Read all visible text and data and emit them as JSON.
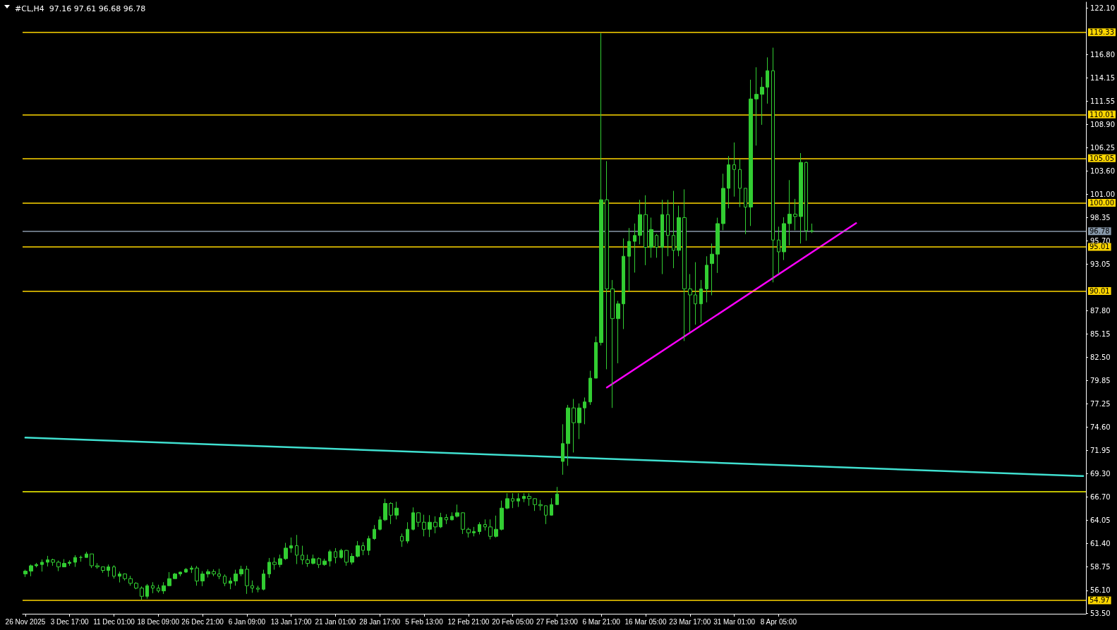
{
  "chart_data": {
    "type": "candlestick",
    "title": "#CL,H4  97.16 97.61 96.68 96.78",
    "color": "#32cd32",
    "categories": [
      "26 Nov 2025",
      null,
      null,
      null,
      null,
      null,
      null,
      null,
      "3 Dec 17:00",
      null,
      null,
      null,
      null,
      null,
      null,
      null,
      "11 Dec 01:00",
      null,
      null,
      null,
      null,
      null,
      null,
      null,
      "18 Dec 09:00",
      null,
      null,
      null,
      null,
      null,
      null,
      null,
      "26 Dec 21:00",
      null,
      null,
      null,
      null,
      null,
      null,
      null,
      "6 Jan 09:00",
      null,
      null,
      null,
      null,
      null,
      null,
      null,
      "13 Jan 17:00",
      null,
      null,
      null,
      null,
      null,
      null,
      null,
      "21 Jan 01:00",
      null,
      null,
      null,
      null,
      null,
      null,
      null,
      "28 Jan 17:00",
      null,
      null,
      null,
      null,
      null,
      null,
      null,
      "5 Feb 13:00",
      null,
      null,
      null,
      null,
      null,
      null,
      null,
      "12 Feb 21:00",
      null,
      null,
      null,
      null,
      null,
      null,
      null,
      "20 Feb 05:00",
      null,
      null,
      null,
      null,
      null,
      null,
      null,
      "27 Feb 13:00",
      null,
      null,
      null,
      null,
      null,
      null,
      null,
      "6 Mar 21:00",
      null,
      null,
      null,
      null,
      null,
      null,
      null,
      "16 Mar 05:00",
      null,
      null,
      null,
      null,
      null,
      null,
      null,
      "23 Mar 17:00",
      null,
      null,
      null,
      null,
      null,
      null,
      null,
      "31 Mar 01:00",
      null,
      null,
      null,
      null,
      null,
      null,
      null,
      "8 Apr 05:00",
      null,
      null,
      null,
      null,
      null,
      null,
      null,
      null,
      null,
      null,
      null,
      null,
      null,
      null,
      null,
      null,
      null,
      null,
      null,
      null,
      null,
      null,
      null,
      null,
      null,
      null,
      null,
      null,
      null,
      null,
      null,
      null,
      null,
      null,
      null,
      null,
      null,
      null,
      null,
      null,
      null,
      null,
      null,
      null,
      null,
      null,
      null,
      null,
      null,
      null,
      null,
      null,
      null,
      null,
      null
    ],
    "ohlc": [
      [
        57.96,
        58.44,
        57.62,
        58.28
      ],
      [
        58.28,
        59.03,
        57.7,
        58.89
      ],
      [
        58.89,
        59.21,
        58.71,
        59.03
      ],
      [
        59.03,
        59.61,
        58.23,
        59.29
      ],
      [
        59.29,
        60.01,
        58.81,
        59.56
      ],
      [
        59.56,
        59.69,
        58.89,
        59.29
      ],
      [
        59.29,
        59.48,
        58.28,
        58.76
      ],
      [
        58.76,
        59.64,
        58.76,
        59.16
      ],
      [
        59.16,
        59.51,
        58.89,
        59.29
      ],
      [
        59.29,
        60.09,
        58.76,
        59.83
      ],
      [
        59.83,
        60.04,
        59.35,
        59.83
      ],
      [
        59.83,
        60.47,
        59.83,
        60.23
      ],
      [
        60.23,
        60.23,
        58.63,
        58.89
      ],
      [
        58.89,
        59.19,
        58.55,
        58.76
      ],
      [
        58.76,
        58.81,
        58.09,
        58.36
      ],
      [
        58.36,
        59.03,
        57.64,
        58.76
      ],
      [
        58.76,
        58.95,
        57.43,
        57.7
      ],
      [
        57.7,
        58.23,
        57.0,
        57.96
      ],
      [
        57.96,
        58.02,
        57.22,
        57.43
      ],
      [
        57.43,
        57.75,
        56.63,
        56.9
      ],
      [
        56.9,
        57.03,
        56.23,
        56.36
      ],
      [
        56.36,
        56.55,
        55.03,
        55.43
      ],
      [
        55.43,
        56.82,
        55.16,
        56.63
      ],
      [
        56.63,
        57.03,
        55.78,
        56.36
      ],
      [
        56.36,
        56.74,
        55.83,
        56.04
      ],
      [
        56.04,
        57.03,
        55.7,
        56.63
      ],
      [
        56.63,
        58.17,
        56.63,
        57.43
      ],
      [
        57.43,
        58.07,
        57.43,
        57.96
      ],
      [
        57.96,
        58.23,
        57.7,
        58.17
      ],
      [
        58.17,
        58.63,
        58.09,
        58.49
      ],
      [
        58.49,
        58.89,
        58.07,
        58.63
      ],
      [
        58.63,
        58.87,
        56.63,
        57.16
      ],
      [
        57.16,
        58.28,
        56.58,
        57.96
      ],
      [
        57.96,
        58.49,
        57.56,
        58.23
      ],
      [
        58.23,
        58.49,
        57.7,
        57.96
      ],
      [
        57.96,
        58.55,
        57.37,
        57.7
      ],
      [
        57.7,
        57.91,
        56.58,
        56.9
      ],
      [
        56.9,
        57.56,
        56.23,
        57.16
      ],
      [
        57.16,
        58.44,
        56.63,
        57.96
      ],
      [
        57.96,
        58.89,
        57.7,
        58.49
      ],
      [
        58.49,
        58.89,
        55.7,
        56.63
      ],
      [
        56.63,
        57.22,
        55.83,
        56.36
      ],
      [
        56.36,
        56.63,
        55.88,
        56.23
      ],
      [
        56.23,
        58.44,
        56.1,
        57.96
      ],
      [
        57.96,
        59.77,
        57.51,
        59.29
      ],
      [
        59.29,
        59.83,
        58.44,
        59.03
      ],
      [
        59.03,
        60.15,
        58.71,
        59.69
      ],
      [
        59.69,
        61.48,
        59.56,
        60.89
      ],
      [
        60.89,
        62.09,
        60.36,
        61.16
      ],
      [
        61.16,
        62.38,
        59.08,
        60.09
      ],
      [
        60.09,
        61.16,
        59.03,
        59.56
      ],
      [
        59.56,
        60.15,
        58.76,
        59.16
      ],
      [
        59.16,
        60.15,
        59.03,
        59.69
      ],
      [
        59.69,
        59.83,
        58.63,
        59.03
      ],
      [
        59.03,
        59.69,
        58.89,
        59.43
      ],
      [
        59.43,
        60.71,
        58.81,
        60.49
      ],
      [
        60.49,
        60.89,
        59.16,
        59.83
      ],
      [
        59.83,
        60.81,
        59.69,
        60.63
      ],
      [
        60.63,
        60.68,
        58.89,
        59.29
      ],
      [
        59.29,
        60.31,
        59.03,
        59.96
      ],
      [
        59.96,
        61.69,
        59.83,
        61.16
      ],
      [
        61.16,
        61.56,
        60.09,
        60.63
      ],
      [
        60.63,
        62.28,
        60.09,
        61.96
      ],
      [
        61.96,
        63.5,
        61.82,
        63.02
      ],
      [
        63.02,
        64.49,
        62.89,
        64.09
      ],
      [
        64.09,
        66.49,
        63.96,
        65.95
      ],
      [
        65.95,
        66.09,
        63.61,
        64.62
      ],
      [
        64.62,
        66.14,
        64.14,
        65.42
      ],
      [
        62.22,
        62.54,
        61.03,
        61.69
      ],
      [
        61.69,
        63.82,
        61.42,
        63.02
      ],
      [
        63.02,
        65.5,
        62.89,
        64.89
      ],
      [
        64.89,
        64.94,
        63.29,
        63.82
      ],
      [
        63.82,
        64.67,
        62.22,
        63.02
      ],
      [
        63.02,
        64.62,
        62.14,
        63.82
      ],
      [
        63.82,
        64.49,
        62.57,
        63.29
      ],
      [
        63.29,
        64.89,
        63.16,
        64.36
      ],
      [
        64.36,
        64.73,
        63.61,
        64.09
      ],
      [
        64.09,
        64.94,
        64.04,
        64.49
      ],
      [
        64.49,
        65.82,
        64.36,
        64.89
      ],
      [
        64.89,
        64.94,
        62.49,
        63.02
      ],
      [
        63.02,
        63.21,
        62.09,
        62.62
      ],
      [
        62.62,
        63.29,
        62.22,
        62.76
      ],
      [
        62.76,
        63.82,
        62.44,
        63.56
      ],
      [
        63.56,
        64.14,
        62.89,
        63.29
      ],
      [
        63.29,
        64.14,
        61.88,
        62.22
      ],
      [
        62.22,
        64.57,
        62.09,
        63.02
      ],
      [
        63.02,
        66.27,
        62.89,
        65.42
      ],
      [
        65.42,
        67.1,
        65.29,
        66.49
      ],
      [
        66.49,
        67.1,
        65.42,
        66.22
      ],
      [
        66.22,
        67.1,
        65.55,
        66.49
      ],
      [
        66.49,
        67.1,
        66.09,
        66.75
      ],
      [
        66.75,
        67.1,
        65.69,
        66.49
      ],
      [
        66.49,
        66.54,
        65.1,
        65.82
      ],
      [
        65.82,
        66.35,
        65.15,
        65.69
      ],
      [
        65.69,
        65.69,
        63.61,
        64.62
      ],
      [
        64.62,
        66.54,
        64.57,
        65.82
      ],
      [
        65.82,
        67.82,
        65.82,
        67.02
      ],
      [
        70.71,
        74.92,
        69.2,
        72.73
      ],
      [
        72.73,
        77.11,
        70.21,
        76.77
      ],
      [
        76.77,
        77.79,
        71.72,
        75.09
      ],
      [
        75.09,
        77.28,
        73.24,
        76.77
      ],
      [
        76.77,
        77.95,
        74.92,
        77.45
      ],
      [
        77.45,
        80.98,
        77.11,
        80.14
      ],
      [
        80.14,
        84.86,
        80.14,
        84.18
      ],
      [
        84.18,
        119.21,
        83.85,
        100.35
      ],
      [
        100.35,
        104.73,
        81.15,
        90.25
      ],
      [
        90.25,
        91.26,
        76.77,
        86.88
      ],
      [
        86.88,
        88.9,
        81.83,
        88.56
      ],
      [
        88.56,
        95.97,
        85.7,
        93.95
      ],
      [
        93.95,
        97.15,
        89.91,
        95.64
      ],
      [
        95.64,
        97.66,
        92.1,
        96.31
      ],
      [
        96.31,
        100.35,
        95.3,
        98.67
      ],
      [
        98.67,
        100.86,
        92.94,
        94.96
      ],
      [
        94.96,
        98.33,
        93.78,
        96.98
      ],
      [
        96.31,
        96.48,
        93.78,
        94.96
      ],
      [
        94.96,
        100.35,
        91.93,
        98.67
      ],
      [
        98.67,
        100.35,
        93.95,
        96.31
      ],
      [
        96.31,
        101.36,
        92.6,
        94.62
      ],
      [
        94.62,
        99.68,
        93.95,
        98.33
      ],
      [
        98.33,
        101.53,
        84.35,
        90.25
      ],
      [
        90.25,
        91.93,
        85.36,
        89.57
      ],
      [
        89.57,
        93.28,
        86.2,
        88.56
      ],
      [
        88.56,
        91.26,
        86.37,
        90.25
      ],
      [
        90.25,
        93.95,
        88.73,
        92.94
      ],
      [
        93.12,
        95.39,
        89.53,
        94.19
      ],
      [
        94.19,
        98.32,
        92.06,
        97.65
      ],
      [
        97.65,
        103.3,
        96.9,
        101.65
      ],
      [
        101.65,
        105.3,
        99.38,
        104.31
      ],
      [
        104.31,
        106.84,
        100.71,
        103.78
      ],
      [
        103.78,
        104.98,
        99.52,
        101.65
      ],
      [
        101.65,
        101.65,
        96.45,
        99.52
      ],
      [
        99.52,
        113.95,
        97.38,
        111.77
      ],
      [
        111.77,
        115.36,
        106.49,
        112.3
      ],
      [
        112.3,
        114.25,
        108.84,
        113.1
      ],
      [
        113.1,
        116.48,
        111.24,
        114.97
      ],
      [
        114.97,
        117.58,
        90.99,
        95.79
      ],
      [
        95.79,
        97.3,
        91.92,
        94.45
      ],
      [
        94.45,
        98.37,
        93.52,
        97.65
      ],
      [
        97.65,
        102.58,
        95.17,
        98.72
      ],
      [
        98.72,
        100.45,
        96.9,
        98.45
      ],
      [
        98.45,
        105.64,
        95.39,
        104.58
      ],
      [
        104.58,
        104.66,
        95.71,
        96.85
      ],
      [
        96.85,
        97.65,
        96.58,
        96.78
      ],
      null,
      null,
      null,
      null,
      null,
      null,
      null,
      null,
      null,
      null,
      null,
      null,
      null,
      null,
      null,
      null,
      null,
      null,
      null,
      null,
      null,
      null,
      null,
      null,
      null,
      null,
      null,
      null,
      null,
      null,
      null,
      null,
      null,
      null,
      null,
      null,
      null,
      null,
      null,
      null,
      null,
      null,
      null,
      null,
      null,
      null,
      null,
      null,
      null
    ],
    "series": [
      {
        "type": "line",
        "color": "#40e0d0",
        "values": [
          73.4,
          null,
          null,
          null,
          null,
          null,
          null,
          null,
          null,
          null,
          null,
          null,
          null,
          null,
          null,
          null,
          null,
          null,
          null,
          null,
          null,
          null,
          null,
          null,
          null,
          null,
          null,
          null,
          null,
          null,
          null,
          null,
          null,
          null,
          null,
          null,
          null,
          null,
          null,
          null,
          null,
          null,
          null,
          null,
          null,
          null,
          null,
          null,
          null,
          null,
          null,
          null,
          null,
          null,
          null,
          null,
          null,
          null,
          null,
          null,
          null,
          null,
          null,
          null,
          null,
          null,
          null,
          null,
          null,
          null,
          null,
          null,
          null,
          null,
          null,
          null,
          null,
          null,
          null,
          null,
          null,
          null,
          null,
          null,
          null,
          null,
          null,
          null,
          null,
          null,
          null,
          null,
          null,
          null,
          null,
          null,
          null,
          null,
          null,
          null,
          null,
          null,
          null,
          null,
          null,
          null,
          null,
          null,
          null,
          null,
          null,
          null,
          null,
          null,
          null,
          null,
          null,
          null,
          null,
          null,
          null,
          null,
          null,
          null,
          null,
          null,
          null,
          null,
          null,
          null,
          null,
          null,
          null,
          null,
          null,
          null,
          null,
          null,
          null,
          null,
          null,
          null,
          null,
          null,
          null,
          null,
          null,
          null,
          null,
          null,
          null,
          null,
          null,
          null,
          null,
          null,
          null,
          null,
          null,
          null,
          null,
          null,
          null,
          null,
          null,
          null,
          null,
          null,
          null,
          null,
          null,
          null,
          null,
          null,
          null,
          null,
          null,
          null,
          null,
          null,
          null,
          null,
          null,
          null,
          null,
          null,
          null,
          null,
          null,
          null,
          null,
          69.05
        ]
      },
      {
        "type": "line",
        "color": "#ff00ff",
        "values": [
          null,
          null,
          null,
          null,
          null,
          null,
          null,
          null,
          null,
          null,
          null,
          null,
          null,
          null,
          null,
          null,
          null,
          null,
          null,
          null,
          null,
          null,
          null,
          null,
          null,
          null,
          null,
          null,
          null,
          null,
          null,
          null,
          null,
          null,
          null,
          null,
          null,
          null,
          null,
          null,
          null,
          null,
          null,
          null,
          null,
          null,
          null,
          null,
          null,
          null,
          null,
          null,
          null,
          null,
          null,
          null,
          null,
          null,
          null,
          null,
          null,
          null,
          null,
          null,
          null,
          null,
          null,
          null,
          null,
          null,
          null,
          null,
          null,
          null,
          null,
          null,
          null,
          null,
          null,
          null,
          null,
          null,
          null,
          null,
          null,
          null,
          null,
          null,
          null,
          null,
          null,
          null,
          null,
          null,
          null,
          null,
          null,
          null,
          null,
          null,
          null,
          null,
          null,
          null,
          null,
          79.08,
          null,
          null,
          null,
          null,
          null,
          null,
          null,
          null,
          null,
          null,
          null,
          null,
          null,
          null,
          null,
          null,
          null,
          null,
          null,
          null,
          null,
          null,
          null,
          null,
          null,
          null,
          null,
          null,
          null,
          null,
          null,
          null,
          null,
          null,
          null,
          null,
          null,
          null,
          null,
          null,
          null,
          null,
          null,
          null,
          97.7,
          null,
          null,
          null,
          null,
          null,
          null,
          null,
          null,
          null,
          null,
          null,
          null,
          null,
          null,
          null,
          null,
          null,
          null,
          null,
          null,
          null,
          null,
          null,
          null,
          null,
          null,
          null,
          null,
          null,
          null,
          null,
          null,
          null,
          null,
          null,
          null,
          null,
          null,
          null,
          null,
          null
        ]
      }
    ],
    "ylim": [
      53.45,
      122.74
    ],
    "yticks": [
      {
        "value": 53.5,
        "label": "53.50"
      },
      {
        "value": 56.1,
        "label": "56.10"
      },
      {
        "value": 58.75,
        "label": "58.75"
      },
      {
        "value": 61.4,
        "label": "61.40"
      },
      {
        "value": 64.05,
        "label": "64.05"
      },
      {
        "value": 66.7,
        "label": "66.70"
      },
      {
        "value": 69.3,
        "label": "69.30"
      },
      {
        "value": 71.95,
        "label": "71.95"
      },
      {
        "value": 74.6,
        "label": "74.60"
      },
      {
        "value": 77.25,
        "label": "77.25"
      },
      {
        "value": 79.85,
        "label": "79.85"
      },
      {
        "value": 82.5,
        "label": "82.50"
      },
      {
        "value": 85.15,
        "label": "85.15"
      },
      {
        "value": 87.8,
        "label": "87.80"
      },
      {
        "value": 93.05,
        "label": "93.05"
      },
      {
        "value": 95.7,
        "label": "95.70"
      },
      {
        "value": 98.35,
        "label": "98.35"
      },
      {
        "value": 101,
        "label": "101.00"
      },
      {
        "value": 103.6,
        "label": "103.60"
      },
      {
        "value": 106.25,
        "label": "106.25"
      },
      {
        "value": 108.9,
        "label": "108.90"
      },
      {
        "value": 111.55,
        "label": "111.55"
      },
      {
        "value": 114.15,
        "label": "114.15"
      },
      {
        "value": 116.8,
        "label": "116.80"
      },
      {
        "value": 122.1,
        "label": "122.10"
      }
    ],
    "ref_lines": [
      {
        "axis": "y",
        "value": 119.33,
        "label": "119.33",
        "color": "#ffd700"
      },
      {
        "axis": "y",
        "value": 110.01,
        "label": "110.01",
        "color": "#ffd700"
      },
      {
        "axis": "y",
        "value": 105.05,
        "label": "105.05",
        "color": "#ffd700"
      },
      {
        "axis": "y",
        "value": 100.0,
        "label": "100.00",
        "color": "#ffd700"
      },
      {
        "axis": "y",
        "value": 96.78,
        "label": "96.78",
        "color": "#8899aa"
      },
      {
        "axis": "y",
        "value": 95.01,
        "label": "95.01",
        "color": "#ffd700"
      },
      {
        "axis": "y",
        "value": 90.01,
        "label": "90.01",
        "color": "#ffd700"
      },
      {
        "axis": "y",
        "value": 67.26,
        "color": "#ffff00"
      },
      {
        "axis": "y",
        "value": 54.97,
        "label": "54.97",
        "color": "#ffd700"
      }
    ]
  }
}
